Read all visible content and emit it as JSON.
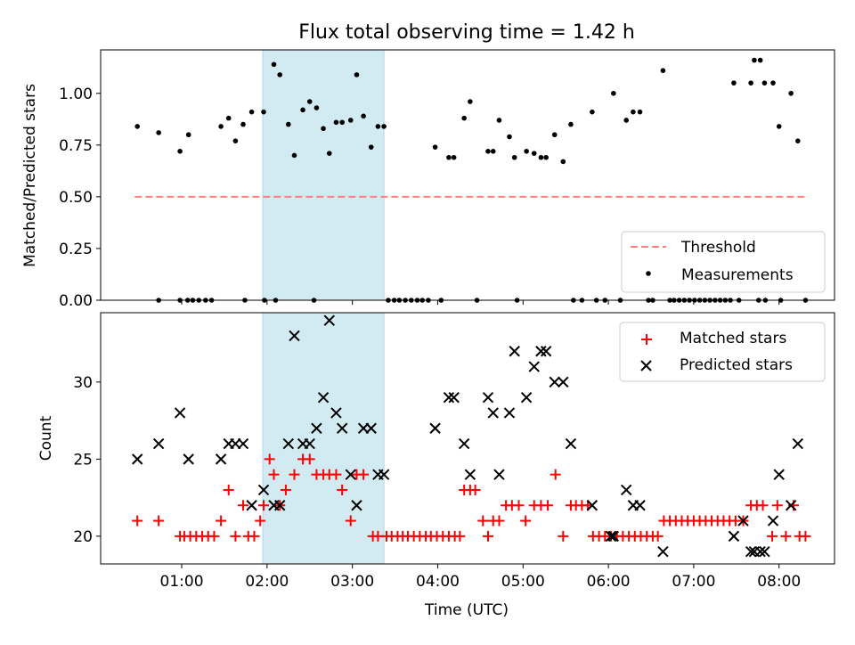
{
  "chart_data": [
    {
      "type": "scatter",
      "title": "Flux total observing time = 1.42 h",
      "xlabel": "",
      "ylabel": "Matched/Predicted stars",
      "x_unit": "hours UTC",
      "xlim": [
        0.05,
        8.65
      ],
      "ylim": [
        0.0,
        1.21
      ],
      "yticks": [
        "0.00",
        "0.25",
        "0.50",
        "0.75",
        "1.00"
      ],
      "ytick_values": [
        0.0,
        0.25,
        0.5,
        0.75,
        1.0
      ],
      "highlight_span": [
        1.95,
        3.37
      ],
      "highlight_color": "#add8e6",
      "threshold": {
        "name": "Threshold",
        "value": 0.5,
        "x_range": [
          0.45,
          8.3
        ],
        "color": "#ff7f7f",
        "style": "dashed"
      },
      "series": [
        {
          "name": "Measurements",
          "color": "#000000",
          "x": [
            0.48,
            0.73,
            0.98,
            1.08,
            1.46,
            1.55,
            1.63,
            1.72,
            1.82,
            1.96,
            2.08,
            2.15,
            2.25,
            2.32,
            2.42,
            2.5,
            2.58,
            2.66,
            2.73,
            2.81,
            2.88,
            2.98,
            3.05,
            3.13,
            3.22,
            3.3,
            3.37,
            3.97,
            4.13,
            4.19,
            4.31,
            4.38,
            4.59,
            4.65,
            4.72,
            4.84,
            4.9,
            5.04,
            5.13,
            5.21,
            5.27,
            5.37,
            5.47,
            5.56,
            5.81,
            6.06,
            6.21,
            6.29,
            6.37,
            6.64,
            7.47,
            7.67,
            7.71,
            7.78,
            7.83,
            7.93,
            8.0,
            8.14,
            8.22,
            0.73,
            0.98,
            1.07,
            1.13,
            1.2,
            1.28,
            1.35,
            1.74,
            1.97,
            2.1,
            2.55,
            3.42,
            3.49,
            3.55,
            3.62,
            3.69,
            3.76,
            3.82,
            3.89,
            4.04,
            4.46,
            4.93,
            5.59,
            5.69,
            5.86,
            5.96,
            6.14,
            6.47,
            6.52,
            6.72,
            6.77,
            6.83,
            6.89,
            6.95,
            7.01,
            7.07,
            7.13,
            7.19,
            7.25,
            7.31,
            7.37,
            7.43,
            7.53,
            7.76,
            7.84,
            8.02,
            8.31
          ],
          "y": [
            0.84,
            0.81,
            0.72,
            0.8,
            0.84,
            0.88,
            0.77,
            0.85,
            0.91,
            0.91,
            1.14,
            1.09,
            0.85,
            0.7,
            0.92,
            0.96,
            0.93,
            0.83,
            0.71,
            0.86,
            0.86,
            0.87,
            1.09,
            0.89,
            0.74,
            0.84,
            0.84,
            0.74,
            0.69,
            0.69,
            0.88,
            0.96,
            0.72,
            0.72,
            0.87,
            0.79,
            0.69,
            0.72,
            0.71,
            0.69,
            0.69,
            0.8,
            0.67,
            0.85,
            0.91,
            1.0,
            0.87,
            0.91,
            0.91,
            1.11,
            1.05,
            1.05,
            1.16,
            1.16,
            1.05,
            1.05,
            0.84,
            1.0,
            0.77,
            0.0,
            0.0,
            0.0,
            0.0,
            0.0,
            0.0,
            0.0,
            0.0,
            0.0,
            0.0,
            0.0,
            0.0,
            0.0,
            0.0,
            0.0,
            0.0,
            0.0,
            0.0,
            0.0,
            0.0,
            0.0,
            0.0,
            0.0,
            0.0,
            0.0,
            0.0,
            0.0,
            0.0,
            0.0,
            0.0,
            0.0,
            0.0,
            0.0,
            0.0,
            0.0,
            0.0,
            0.0,
            0.0,
            0.0,
            0.0,
            0.0,
            0.0,
            0.0,
            0.0,
            0.0,
            0.0,
            0.0
          ]
        }
      ],
      "legend": {
        "placement": "lower right",
        "entries": [
          "Threshold",
          "Measurements"
        ]
      }
    },
    {
      "type": "scatter",
      "title": "",
      "xlabel": "Time (UTC)",
      "ylabel": "Count",
      "x_unit": "hours UTC",
      "xlim": [
        0.05,
        8.65
      ],
      "ylim": [
        18.2,
        34.5
      ],
      "yticks": [
        "20",
        "25",
        "30"
      ],
      "ytick_values": [
        20,
        25,
        30
      ],
      "xticks": [
        "01:00",
        "02:00",
        "03:00",
        "04:00",
        "05:00",
        "06:00",
        "07:00",
        "08:00"
      ],
      "xtick_values": [
        1,
        2,
        3,
        4,
        5,
        6,
        7,
        8
      ],
      "highlight_span": [
        1.95,
        3.37
      ],
      "highlight_color": "#add8e6",
      "series": [
        {
          "name": "Matched stars",
          "color": "#ff0000",
          "marker": "plus",
          "x": [
            0.48,
            0.73,
            0.98,
            1.03,
            1.1,
            1.17,
            1.24,
            1.31,
            1.38,
            1.46,
            1.55,
            1.63,
            1.72,
            1.78,
            1.85,
            1.92,
            1.96,
            2.03,
            2.08,
            2.15,
            2.22,
            2.32,
            2.42,
            2.5,
            2.58,
            2.66,
            2.73,
            2.81,
            2.88,
            2.98,
            3.05,
            3.13,
            3.24,
            3.3,
            3.4,
            3.46,
            3.53,
            3.59,
            3.65,
            3.72,
            3.79,
            3.86,
            3.92,
            3.99,
            4.06,
            4.13,
            4.2,
            4.26,
            4.31,
            4.38,
            4.44,
            4.53,
            4.59,
            4.65,
            4.72,
            4.8,
            4.87,
            4.95,
            5.03,
            5.13,
            5.21,
            5.29,
            5.38,
            5.47,
            5.56,
            5.62,
            5.69,
            5.76,
            5.82,
            5.89,
            5.96,
            6.03,
            6.1,
            6.17,
            6.24,
            6.31,
            6.38,
            6.45,
            6.52,
            6.58,
            6.65,
            6.72,
            6.79,
            6.86,
            6.93,
            7.0,
            7.07,
            7.14,
            7.21,
            7.28,
            7.35,
            7.42,
            7.49,
            7.58,
            7.67,
            7.74,
            7.81,
            7.92,
            7.98,
            8.08,
            8.17,
            8.24,
            8.31
          ],
          "y": [
            21,
            21,
            20,
            20,
            20,
            20,
            20,
            20,
            20,
            21,
            23,
            20,
            22,
            20,
            20,
            21,
            22,
            25,
            24,
            22,
            23,
            24,
            25,
            25,
            24,
            24,
            24,
            24,
            23,
            21,
            24,
            24,
            20,
            20,
            20,
            20,
            20,
            20,
            20,
            20,
            20,
            20,
            20,
            20,
            20,
            20,
            20,
            20,
            23,
            23,
            23,
            21,
            20,
            21,
            21,
            22,
            22,
            22,
            21,
            22,
            22,
            22,
            24,
            20,
            22,
            22,
            22,
            22,
            20,
            20,
            20,
            20,
            20,
            20,
            20,
            20,
            20,
            20,
            20,
            20,
            21,
            21,
            21,
            21,
            21,
            21,
            21,
            21,
            21,
            21,
            21,
            21,
            21,
            21,
            22,
            22,
            22,
            20,
            22,
            20,
            22,
            20,
            20
          ]
        },
        {
          "name": "Predicted stars",
          "color": "#000000",
          "marker": "x",
          "x": [
            0.48,
            0.73,
            0.98,
            1.08,
            1.46,
            1.55,
            1.63,
            1.72,
            1.82,
            1.96,
            2.08,
            2.15,
            2.25,
            2.32,
            2.42,
            2.5,
            2.58,
            2.66,
            2.73,
            2.81,
            2.88,
            2.98,
            3.05,
            3.13,
            3.22,
            3.3,
            3.37,
            3.97,
            4.13,
            4.19,
            4.31,
            4.38,
            4.59,
            4.65,
            4.72,
            4.84,
            4.9,
            5.04,
            5.13,
            5.21,
            5.27,
            5.37,
            5.47,
            5.56,
            5.81,
            6.03,
            6.06,
            6.21,
            6.29,
            6.37,
            6.64,
            7.47,
            7.58,
            7.67,
            7.71,
            7.78,
            7.83,
            7.93,
            8.0,
            8.14,
            8.22
          ],
          "y": [
            25,
            26,
            28,
            25,
            25,
            26,
            26,
            26,
            22,
            23,
            22,
            22,
            26,
            33,
            26,
            26,
            27,
            29,
            34,
            28,
            27,
            24,
            22,
            27,
            27,
            24,
            24,
            27,
            29,
            29,
            26,
            24,
            29,
            28,
            24,
            28,
            32,
            29,
            31,
            32,
            32,
            30,
            30,
            26,
            22,
            20,
            20,
            23,
            22,
            22,
            19,
            20,
            21,
            19,
            19,
            19,
            19,
            21,
            24,
            22,
            26
          ]
        }
      ],
      "legend": {
        "placement": "upper right",
        "entries": [
          "Matched stars",
          "Predicted stars"
        ]
      }
    }
  ]
}
